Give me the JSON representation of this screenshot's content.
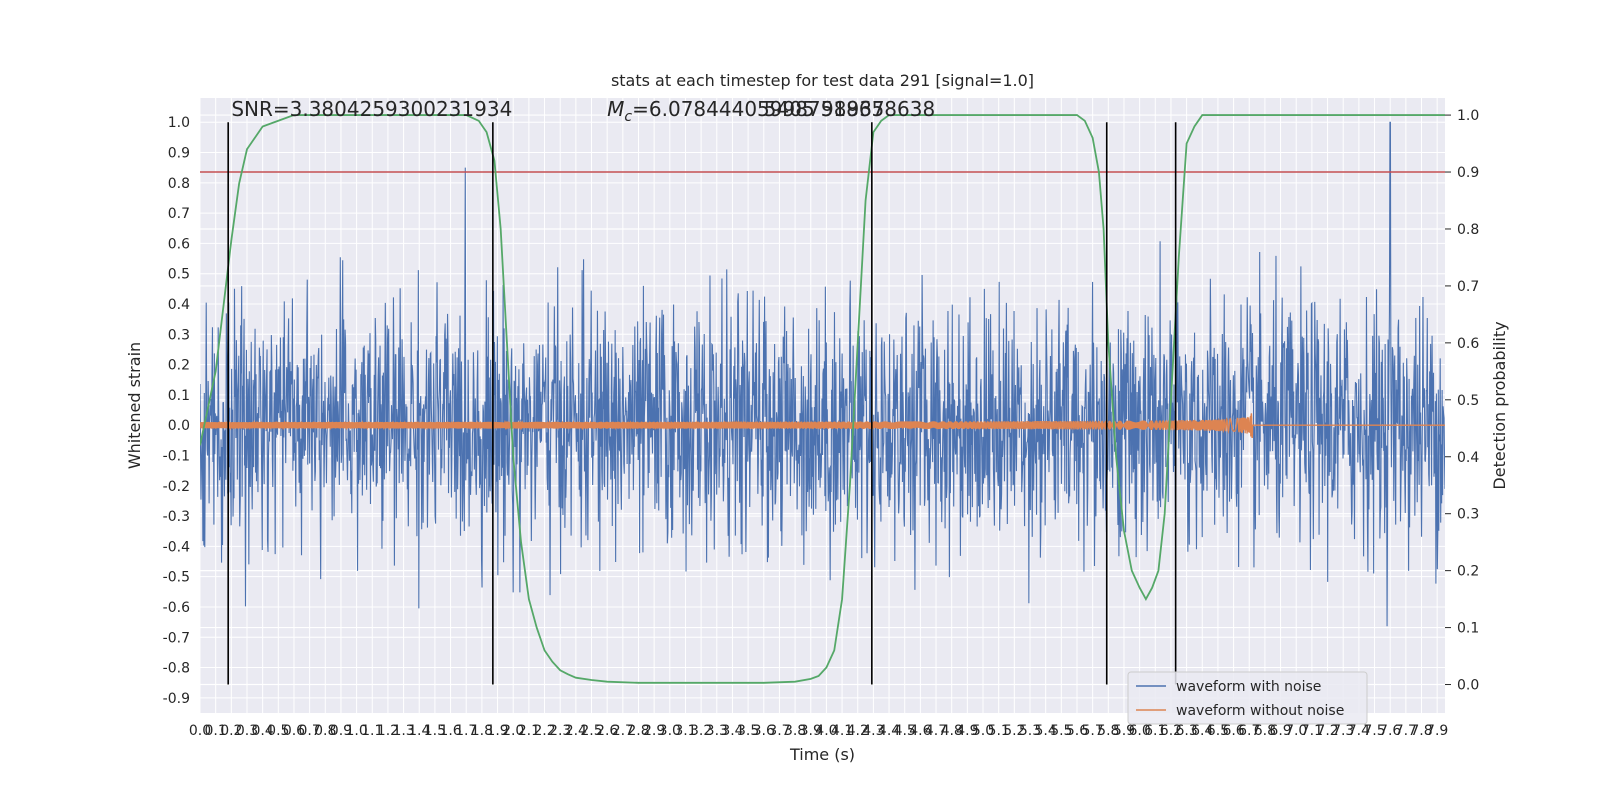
{
  "chart_data": {
    "type": "line",
    "title": "stats at each timestep for test data 291 [signal=1.0]",
    "xlabel": "Time (s)",
    "ylabel": "Whitened strain",
    "y2label": "Detection probability",
    "xlim": [
      0,
      7.95
    ],
    "ylim": [
      -0.95,
      1.08
    ],
    "y2lim": [
      -0.05,
      1.03
    ],
    "x_ticks": [
      0.0,
      0.1,
      0.2,
      0.3,
      0.4,
      0.5,
      0.6,
      0.7,
      0.8,
      0.9,
      1.0,
      1.1,
      1.2,
      1.3,
      1.4,
      1.5,
      1.6,
      1.7,
      1.8,
      1.9,
      2.0,
      2.1,
      2.2,
      2.3,
      2.4,
      2.5,
      2.6,
      2.7,
      2.8,
      2.9,
      3.0,
      3.1,
      3.2,
      3.3,
      3.4,
      3.5,
      3.6,
      3.7,
      3.8,
      3.9,
      4.0,
      4.1,
      4.2,
      4.3,
      4.4,
      4.5,
      4.6,
      4.7,
      4.8,
      4.9,
      5.0,
      5.1,
      5.2,
      5.3,
      5.4,
      5.5,
      5.6,
      5.7,
      5.8,
      5.9,
      6.0,
      6.1,
      6.2,
      6.3,
      6.4,
      6.5,
      6.6,
      6.7,
      6.8,
      6.9,
      7.0,
      7.1,
      7.2,
      7.3,
      7.4,
      7.5,
      7.6,
      7.7,
      7.8,
      7.9
    ],
    "y_ticks": [
      -0.9,
      -0.8,
      -0.7,
      -0.6,
      -0.5,
      -0.4,
      -0.3,
      -0.2,
      -0.1,
      0.0,
      0.1,
      0.2,
      0.3,
      0.4,
      0.5,
      0.6,
      0.7,
      0.8,
      0.9,
      1.0
    ],
    "y2_ticks": [
      0.0,
      0.1,
      0.2,
      0.3,
      0.4,
      0.5,
      0.6,
      0.7,
      0.8,
      0.9,
      1.0
    ],
    "grid": true,
    "legend_position": "lower-right",
    "annotations": {
      "snr": "SNR=3.3804259300231934",
      "mc_label": "M",
      "mc_sub": "c",
      "mc_value": "=6.078444059987518658638",
      "overlap": "5405 98937"
    },
    "series": [
      {
        "name": "waveform with noise",
        "color": "#4c72b0",
        "axis": "left",
        "description_range": [
          -0.85,
          1.0
        ],
        "spike_max": {
          "x": 7.6,
          "y": 1.0
        }
      },
      {
        "name": "waveform without noise",
        "color": "#dd8452",
        "axis": "left",
        "chirp_end": 6.72,
        "chirp_peak_amplitude": 0.07
      },
      {
        "name": "detection probability",
        "color": "#55a868",
        "axis": "right",
        "x": [
          0.0,
          0.1,
          0.2,
          0.25,
          0.3,
          0.4,
          0.5,
          0.6,
          0.7,
          0.8,
          1.0,
          1.5,
          1.7,
          1.78,
          1.83,
          1.88,
          1.92,
          1.96,
          2.0,
          2.05,
          2.1,
          2.15,
          2.2,
          2.25,
          2.3,
          2.35,
          2.4,
          2.5,
          2.6,
          2.8,
          3.2,
          3.6,
          3.8,
          3.9,
          3.95,
          4.0,
          4.05,
          4.1,
          4.15,
          4.2,
          4.25,
          4.3,
          4.35,
          4.4,
          4.5,
          4.6,
          4.8,
          5.4,
          5.6,
          5.65,
          5.7,
          5.74,
          5.77,
          5.8,
          5.85,
          5.9,
          5.95,
          6.0,
          6.04,
          6.08,
          6.12,
          6.16,
          6.2,
          6.25,
          6.3,
          6.35,
          6.4,
          6.5,
          7.0,
          7.5,
          7.95
        ],
        "y": [
          0.42,
          0.55,
          0.78,
          0.88,
          0.94,
          0.98,
          0.99,
          1.0,
          1.0,
          1.0,
          1.0,
          1.0,
          1.0,
          0.99,
          0.97,
          0.92,
          0.8,
          0.6,
          0.4,
          0.25,
          0.15,
          0.1,
          0.06,
          0.04,
          0.025,
          0.018,
          0.012,
          0.008,
          0.005,
          0.003,
          0.003,
          0.003,
          0.005,
          0.01,
          0.015,
          0.03,
          0.06,
          0.15,
          0.35,
          0.6,
          0.85,
          0.97,
          0.99,
          1.0,
          1.0,
          1.0,
          1.0,
          1.0,
          1.0,
          0.99,
          0.96,
          0.9,
          0.8,
          0.6,
          0.4,
          0.27,
          0.2,
          0.17,
          0.15,
          0.17,
          0.2,
          0.3,
          0.5,
          0.75,
          0.95,
          0.98,
          1.0,
          1.0,
          1.0,
          1.0,
          1.0
        ]
      }
    ],
    "threshold": {
      "axis": "right",
      "value": 0.9,
      "color": "#c44e52"
    },
    "vlines": [
      0.18,
      1.87,
      4.29,
      5.79,
      6.23
    ],
    "vline_color": "#000000"
  }
}
